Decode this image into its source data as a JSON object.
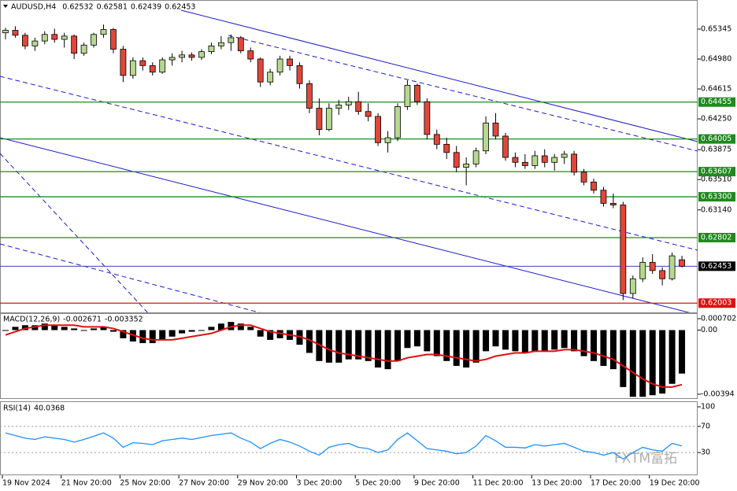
{
  "chart_data": {
    "type": "candlestick",
    "title": "AUDUSD,H4",
    "up_color": "#b6d98f",
    "down_color": "#e0473a",
    "ylim": [
      0.6189,
      0.657
    ],
    "yticks": [
      0.65345,
      {
        "value": 0.6498,
        "label": "0.64980"
      },
      0.64615,
      {
        "value": 0.6425,
        "label": "0.64250"
      },
      0.63875,
      {
        "value": 0.6351,
        "label": "0.63510"
      },
      {
        "value": 0.6314,
        "label": "0.63140"
      }
    ],
    "levels": [
      {
        "value": 0.64455,
        "color": "#1f8a1f"
      },
      {
        "value": 0.64005,
        "color": "#1f8a1f"
      },
      {
        "value": 0.63607,
        "color": "#1f8a1f"
      },
      {
        "value": 0.633,
        "label": "0.63300",
        "color": "#1f8a1f"
      },
      {
        "value": 0.62802,
        "color": "#1f8a1f"
      },
      {
        "value": 0.62453,
        "color": "#4040d0"
      },
      {
        "value": 0.62003,
        "color": "#e01010"
      }
    ],
    "categories": [
      "19 Nov 2024",
      null,
      null,
      null,
      null,
      null,
      "21 Nov 20:00",
      null,
      null,
      null,
      null,
      null,
      "25 Nov 20:00",
      null,
      null,
      null,
      null,
      null,
      "27 Nov 20:00",
      null,
      null,
      null,
      null,
      null,
      "29 Nov 20:00",
      null,
      null,
      null,
      null,
      null,
      "3 Dec 20:00",
      null,
      null,
      null,
      null,
      null,
      "5 Dec 20:00",
      null,
      null,
      null,
      null,
      null,
      "9 Dec 20:00",
      null,
      null,
      null,
      null,
      null,
      "11 Dec 20:00",
      null,
      null,
      null,
      null,
      null,
      "13 Dec 20:00",
      null,
      null,
      null,
      null,
      null,
      "17 Dec 20:00",
      null,
      null,
      null,
      null,
      null,
      "19 Dec 20:00",
      null,
      null,
      null
    ],
    "ohlc": [
      [
        0.653,
        0.6536,
        0.6522,
        0.6533
      ],
      [
        0.6533,
        0.6538,
        0.6524,
        0.6527
      ],
      [
        0.6527,
        0.653,
        0.651,
        0.6514
      ],
      [
        0.6514,
        0.6524,
        0.6508,
        0.652
      ],
      [
        0.652,
        0.6532,
        0.6516,
        0.6528
      ],
      [
        0.6528,
        0.6535,
        0.6518,
        0.6522
      ],
      [
        0.6522,
        0.653,
        0.6512,
        0.6526
      ],
      [
        0.6526,
        0.6528,
        0.6498,
        0.6505
      ],
      [
        0.6505,
        0.6518,
        0.6502,
        0.6515
      ],
      [
        0.6515,
        0.653,
        0.6512,
        0.6528
      ],
      [
        0.6528,
        0.654,
        0.6524,
        0.6534
      ],
      [
        0.6534,
        0.6536,
        0.6505,
        0.651
      ],
      [
        0.651,
        0.6514,
        0.647,
        0.6478
      ],
      [
        0.6478,
        0.65,
        0.6474,
        0.6496
      ],
      [
        0.6496,
        0.65,
        0.6484,
        0.649
      ],
      [
        0.649,
        0.6494,
        0.6478,
        0.6482
      ],
      [
        0.6482,
        0.65,
        0.648,
        0.6497
      ],
      [
        0.6497,
        0.6505,
        0.649,
        0.65
      ],
      [
        0.65,
        0.6508,
        0.6494,
        0.6503
      ],
      [
        0.6503,
        0.6506,
        0.6496,
        0.65
      ],
      [
        0.65,
        0.651,
        0.6497,
        0.6507
      ],
      [
        0.6507,
        0.6518,
        0.6504,
        0.6514
      ],
      [
        0.6514,
        0.6526,
        0.651,
        0.6518
      ],
      [
        0.6518,
        0.6528,
        0.6508,
        0.6524
      ],
      [
        0.6524,
        0.6526,
        0.6505,
        0.6508
      ],
      [
        0.6508,
        0.6512,
        0.6494,
        0.6498
      ],
      [
        0.6498,
        0.65,
        0.6464,
        0.647
      ],
      [
        0.647,
        0.6486,
        0.6466,
        0.6482
      ],
      [
        0.6482,
        0.6502,
        0.6478,
        0.6498
      ],
      [
        0.6498,
        0.6502,
        0.6484,
        0.649
      ],
      [
        0.649,
        0.6494,
        0.6462,
        0.6468
      ],
      [
        0.6468,
        0.6472,
        0.6432,
        0.6438
      ],
      [
        0.6438,
        0.645,
        0.6405,
        0.6412
      ],
      [
        0.6412,
        0.6444,
        0.641,
        0.6438
      ],
      [
        0.6438,
        0.6448,
        0.643,
        0.6442
      ],
      [
        0.6442,
        0.6452,
        0.6436,
        0.6446
      ],
      [
        0.6446,
        0.6458,
        0.643,
        0.6434
      ],
      [
        0.6434,
        0.6444,
        0.6422,
        0.6428
      ],
      [
        0.6428,
        0.6432,
        0.6392,
        0.6396
      ],
      [
        0.6396,
        0.641,
        0.6384,
        0.6402
      ],
      [
        0.6402,
        0.6444,
        0.6398,
        0.644
      ],
      [
        0.644,
        0.6472,
        0.6436,
        0.6466
      ],
      [
        0.6466,
        0.6468,
        0.6442,
        0.6446
      ],
      [
        0.6446,
        0.645,
        0.64,
        0.6406
      ],
      [
        0.6406,
        0.6412,
        0.6388,
        0.6394
      ],
      [
        0.6394,
        0.6402,
        0.6376,
        0.6384
      ],
      [
        0.6384,
        0.6392,
        0.636,
        0.6366
      ],
      [
        0.6366,
        0.6378,
        0.6344,
        0.637
      ],
      [
        0.637,
        0.639,
        0.6366,
        0.6386
      ],
      [
        0.6386,
        0.6428,
        0.6382,
        0.642
      ],
      [
        0.642,
        0.6432,
        0.64,
        0.6404
      ],
      [
        0.6404,
        0.6408,
        0.6374,
        0.6378
      ],
      [
        0.6378,
        0.6384,
        0.6366,
        0.6372
      ],
      [
        0.6372,
        0.6382,
        0.6364,
        0.6368
      ],
      [
        0.6368,
        0.6386,
        0.6364,
        0.638
      ],
      [
        0.638,
        0.6388,
        0.6366,
        0.6372
      ],
      [
        0.6372,
        0.6382,
        0.6362,
        0.6378
      ],
      [
        0.6378,
        0.6386,
        0.637,
        0.6382
      ],
      [
        0.6382,
        0.6386,
        0.6356,
        0.636
      ],
      [
        0.636,
        0.6364,
        0.6344,
        0.6348
      ],
      [
        0.6348,
        0.6352,
        0.6334,
        0.6338
      ],
      [
        0.6338,
        0.6342,
        0.6318,
        0.6322
      ],
      [
        0.6322,
        0.6334,
        0.6316,
        0.632
      ],
      [
        0.632,
        0.6324,
        0.6204,
        0.6212
      ],
      [
        0.6212,
        0.6234,
        0.6206,
        0.623
      ],
      [
        0.623,
        0.6256,
        0.6226,
        0.625
      ],
      [
        0.625,
        0.626,
        0.6236,
        0.624
      ],
      [
        0.624,
        0.6244,
        0.6222,
        0.623
      ],
      [
        0.623,
        0.6262,
        0.6228,
        0.6258
      ],
      [
        0.62532,
        0.62581,
        0.62439,
        0.62453
      ]
    ],
    "macd": {
      "title": "MACD(12,26,9)",
      "ylim": [
        -0.00423,
        0.00104
      ],
      "yticks": [
        0.000702,
        {
          "value": 0,
          "label": "0.00"
        },
        -0.00394
      ],
      "histogram": [
        0.0,
        0.0002,
        0.0003,
        0.0003,
        0.0004,
        0.0003,
        0.0002,
        0.0001,
        0.0,
        0.0001,
        0.0002,
        -0.0001,
        -0.0005,
        -0.0007,
        -0.0008,
        -0.0008,
        -0.0006,
        -0.0004,
        -0.0002,
        -0.0001,
        0.0,
        0.0002,
        0.0004,
        0.0005,
        0.0004,
        0.0002,
        -0.0004,
        -0.0006,
        -0.0005,
        -0.0006,
        -0.0009,
        -0.0014,
        -0.0019,
        -0.002,
        -0.002,
        -0.0018,
        -0.0018,
        -0.0019,
        -0.0023,
        -0.0024,
        -0.0019,
        -0.0011,
        -0.001,
        -0.0013,
        -0.0016,
        -0.0019,
        -0.0022,
        -0.0023,
        -0.002,
        -0.0013,
        -0.001,
        -0.0012,
        -0.0013,
        -0.0014,
        -0.0013,
        -0.0013,
        -0.0012,
        -0.0011,
        -0.0013,
        -0.0016,
        -0.0019,
        -0.0022,
        -0.0024,
        -0.0035,
        -0.0041,
        -0.0041,
        -0.004,
        -0.0039,
        -0.0033,
        -0.002671
      ],
      "signal": [
        -0.0003,
        -0.0001,
        0.0001,
        0.0002,
        0.0003,
        0.0003,
        0.0003,
        0.0003,
        0.0002,
        0.0002,
        0.0002,
        0.0001,
        -0.0001,
        -0.0003,
        -0.0005,
        -0.0006,
        -0.0006,
        -0.0006,
        -0.0005,
        -0.0004,
        -0.0003,
        -0.0002,
        0.0,
        0.0002,
        0.0003,
        0.0003,
        0.0001,
        -0.0001,
        -0.0002,
        -0.0003,
        -0.0004,
        -0.0006,
        -0.0009,
        -0.0012,
        -0.0014,
        -0.0015,
        -0.0016,
        -0.0017,
        -0.0018,
        -0.0019,
        -0.0019,
        -0.0017,
        -0.0016,
        -0.0015,
        -0.0015,
        -0.0016,
        -0.0017,
        -0.0018,
        -0.0019,
        -0.0018,
        -0.0016,
        -0.0015,
        -0.0014,
        -0.0014,
        -0.0013,
        -0.0013,
        -0.0013,
        -0.0012,
        -0.0012,
        -0.0013,
        -0.0014,
        -0.0016,
        -0.0018,
        -0.0022,
        -0.0026,
        -0.003,
        -0.0033,
        -0.0035,
        -0.0035,
        -0.003352
      ],
      "hist_color": "#000000",
      "signal_color": "#e01010"
    },
    "rsi": {
      "title": "RSI(14)",
      "ylim": [
        -3.6,
        107.2
      ],
      "yticks": [
        100,
        70,
        30
      ],
      "levels": [
        70,
        30
      ],
      "color": "#1e90ff",
      "values": [
        60,
        56,
        52,
        50,
        54,
        52,
        50,
        46,
        50,
        55,
        60,
        52,
        38,
        45,
        44,
        42,
        48,
        50,
        52,
        50,
        53,
        56,
        58,
        60,
        52,
        46,
        36,
        44,
        50,
        46,
        40,
        32,
        26,
        38,
        42,
        44,
        38,
        36,
        30,
        34,
        50,
        60,
        48,
        36,
        34,
        32,
        28,
        30,
        40,
        56,
        48,
        38,
        38,
        37,
        42,
        40,
        42,
        44,
        38,
        32,
        30,
        26,
        30,
        20,
        30,
        38,
        34,
        32,
        44,
        40.0368
      ]
    },
    "watermark": "FXTM富拓"
  }
}
